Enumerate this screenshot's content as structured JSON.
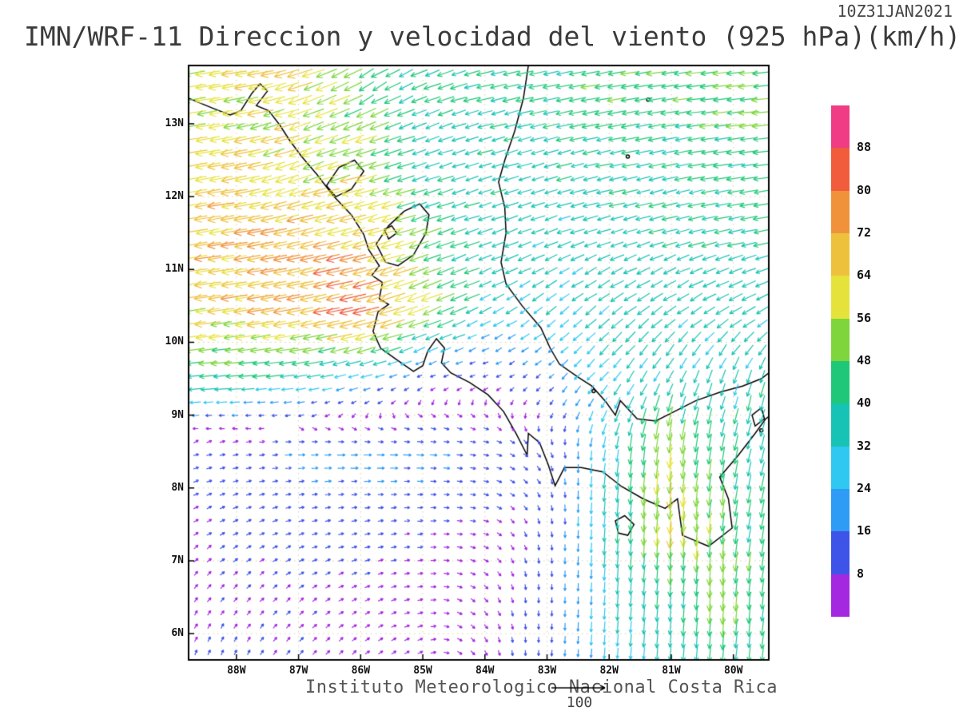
{
  "header": {
    "timestamp": "10Z31JAN2021",
    "title": "IMN/WRF-11 Direccion y velocidad del viento (925 hPa)(km/h)"
  },
  "footer": {
    "credit": "Instituto Meteorologico Nacional Costa Rica",
    "reference_value": "100"
  },
  "chart_data": {
    "type": "vector-field-map",
    "title": "IMN/WRF-11 Direccion y velocidad del viento (925 hPa)(km/h)",
    "timestamp": "10Z31JAN2021",
    "variable": "Wind direction and speed",
    "level": "925 hPa",
    "units": "km/h",
    "x_axis": {
      "label_ticks": [
        "88W",
        "87W",
        "86W",
        "85W",
        "84W",
        "83W",
        "82W",
        "81W",
        "80W"
      ],
      "lon_values": [
        -88,
        -87,
        -86,
        -85,
        -84,
        -83,
        -82,
        -81,
        -80
      ],
      "range": [
        -88.77,
        -79.43
      ]
    },
    "y_axis": {
      "label_ticks": [
        "13N",
        "12N",
        "11N",
        "10N",
        "9N",
        "8N",
        "7N",
        "6N"
      ],
      "lat_values": [
        13,
        12,
        11,
        10,
        9,
        8,
        7,
        6
      ],
      "range": [
        5.64,
        13.8
      ]
    },
    "colorbar": {
      "labels": [
        "88",
        "80",
        "72",
        "64",
        "56",
        "48",
        "40",
        "32",
        "24",
        "16",
        "8"
      ],
      "thresholds": [
        8,
        16,
        24,
        32,
        40,
        48,
        56,
        64,
        72,
        80,
        88
      ],
      "colors_bottom_to_top": [
        "#A428E0",
        "#3E53E8",
        "#2E9BF5",
        "#2EC8F0",
        "#17C3B4",
        "#1EC878",
        "#7ED63C",
        "#E6E23C",
        "#EEC13C",
        "#F0923A",
        "#F05C3C",
        "#F03C84"
      ]
    },
    "wind_grid": {
      "comment": "u=eastward, v=northward wind components in km/h on coarse grid; rows ordered south to north",
      "lons": [
        -89,
        -88,
        -87,
        -86,
        -85,
        -84,
        -83,
        -82,
        -81,
        -80,
        -79.4
      ],
      "lats": [
        5.7,
        6.5,
        7.5,
        8.5,
        9.5,
        10.5,
        11.5,
        12.5,
        13.5
      ],
      "u": [
        [
          3,
          4,
          5,
          5,
          4,
          3,
          -1,
          -2,
          -3,
          -4,
          -5
        ],
        [
          4,
          5,
          6,
          6,
          5,
          4,
          0,
          -2,
          -3,
          -4,
          -5
        ],
        [
          6,
          8,
          10,
          10,
          9,
          7,
          2,
          -3,
          -4,
          -6,
          -8
        ],
        [
          8,
          12,
          18,
          20,
          20,
          15,
          5,
          -5,
          -6,
          -8,
          -10
        ],
        [
          -45,
          -42,
          -35,
          -25,
          -12,
          -8,
          -12,
          -20,
          -15,
          -10,
          -12
        ],
        [
          -60,
          -66,
          -72,
          -82,
          -55,
          -30,
          -25,
          -28,
          -30,
          -32,
          -32
        ],
        [
          -65,
          -68,
          -70,
          -65,
          -45,
          -35,
          -32,
          -34,
          -36,
          -38,
          -40
        ],
        [
          -60,
          -62,
          -55,
          -55,
          -35,
          -35,
          -35,
          -38,
          -40,
          -42,
          -45
        ],
        [
          -55,
          -60,
          -58,
          -40,
          -38,
          -40,
          -42,
          -45,
          -46,
          -48,
          -48
        ]
      ],
      "v": [
        [
          7,
          8,
          6,
          4,
          2,
          -5,
          -14,
          -28,
          -38,
          -42,
          -38
        ],
        [
          6,
          6,
          5,
          3,
          1,
          -4,
          -12,
          -30,
          -42,
          -50,
          -40
        ],
        [
          4,
          4,
          3,
          2,
          1,
          -2,
          -10,
          -35,
          -62,
          -45,
          -40
        ],
        [
          2,
          2,
          1,
          0,
          -1,
          -3,
          -8,
          -30,
          -58,
          -38,
          -40
        ],
        [
          -5,
          -3,
          -5,
          -8,
          -5,
          -3,
          -10,
          -25,
          -30,
          -32,
          -35
        ],
        [
          -8,
          -10,
          -14,
          -20,
          -22,
          -15,
          -20,
          -22,
          -20,
          -18,
          -15
        ],
        [
          -10,
          -12,
          -15,
          -18,
          -15,
          -12,
          -12,
          -10,
          -10,
          -8,
          -8
        ],
        [
          -10,
          -12,
          -20,
          -15,
          -12,
          -10,
          -10,
          -8,
          -8,
          -6,
          -5
        ],
        [
          -8,
          -10,
          -18,
          -25,
          -15,
          -10,
          -8,
          -8,
          -6,
          -5,
          -5
        ]
      ]
    }
  }
}
